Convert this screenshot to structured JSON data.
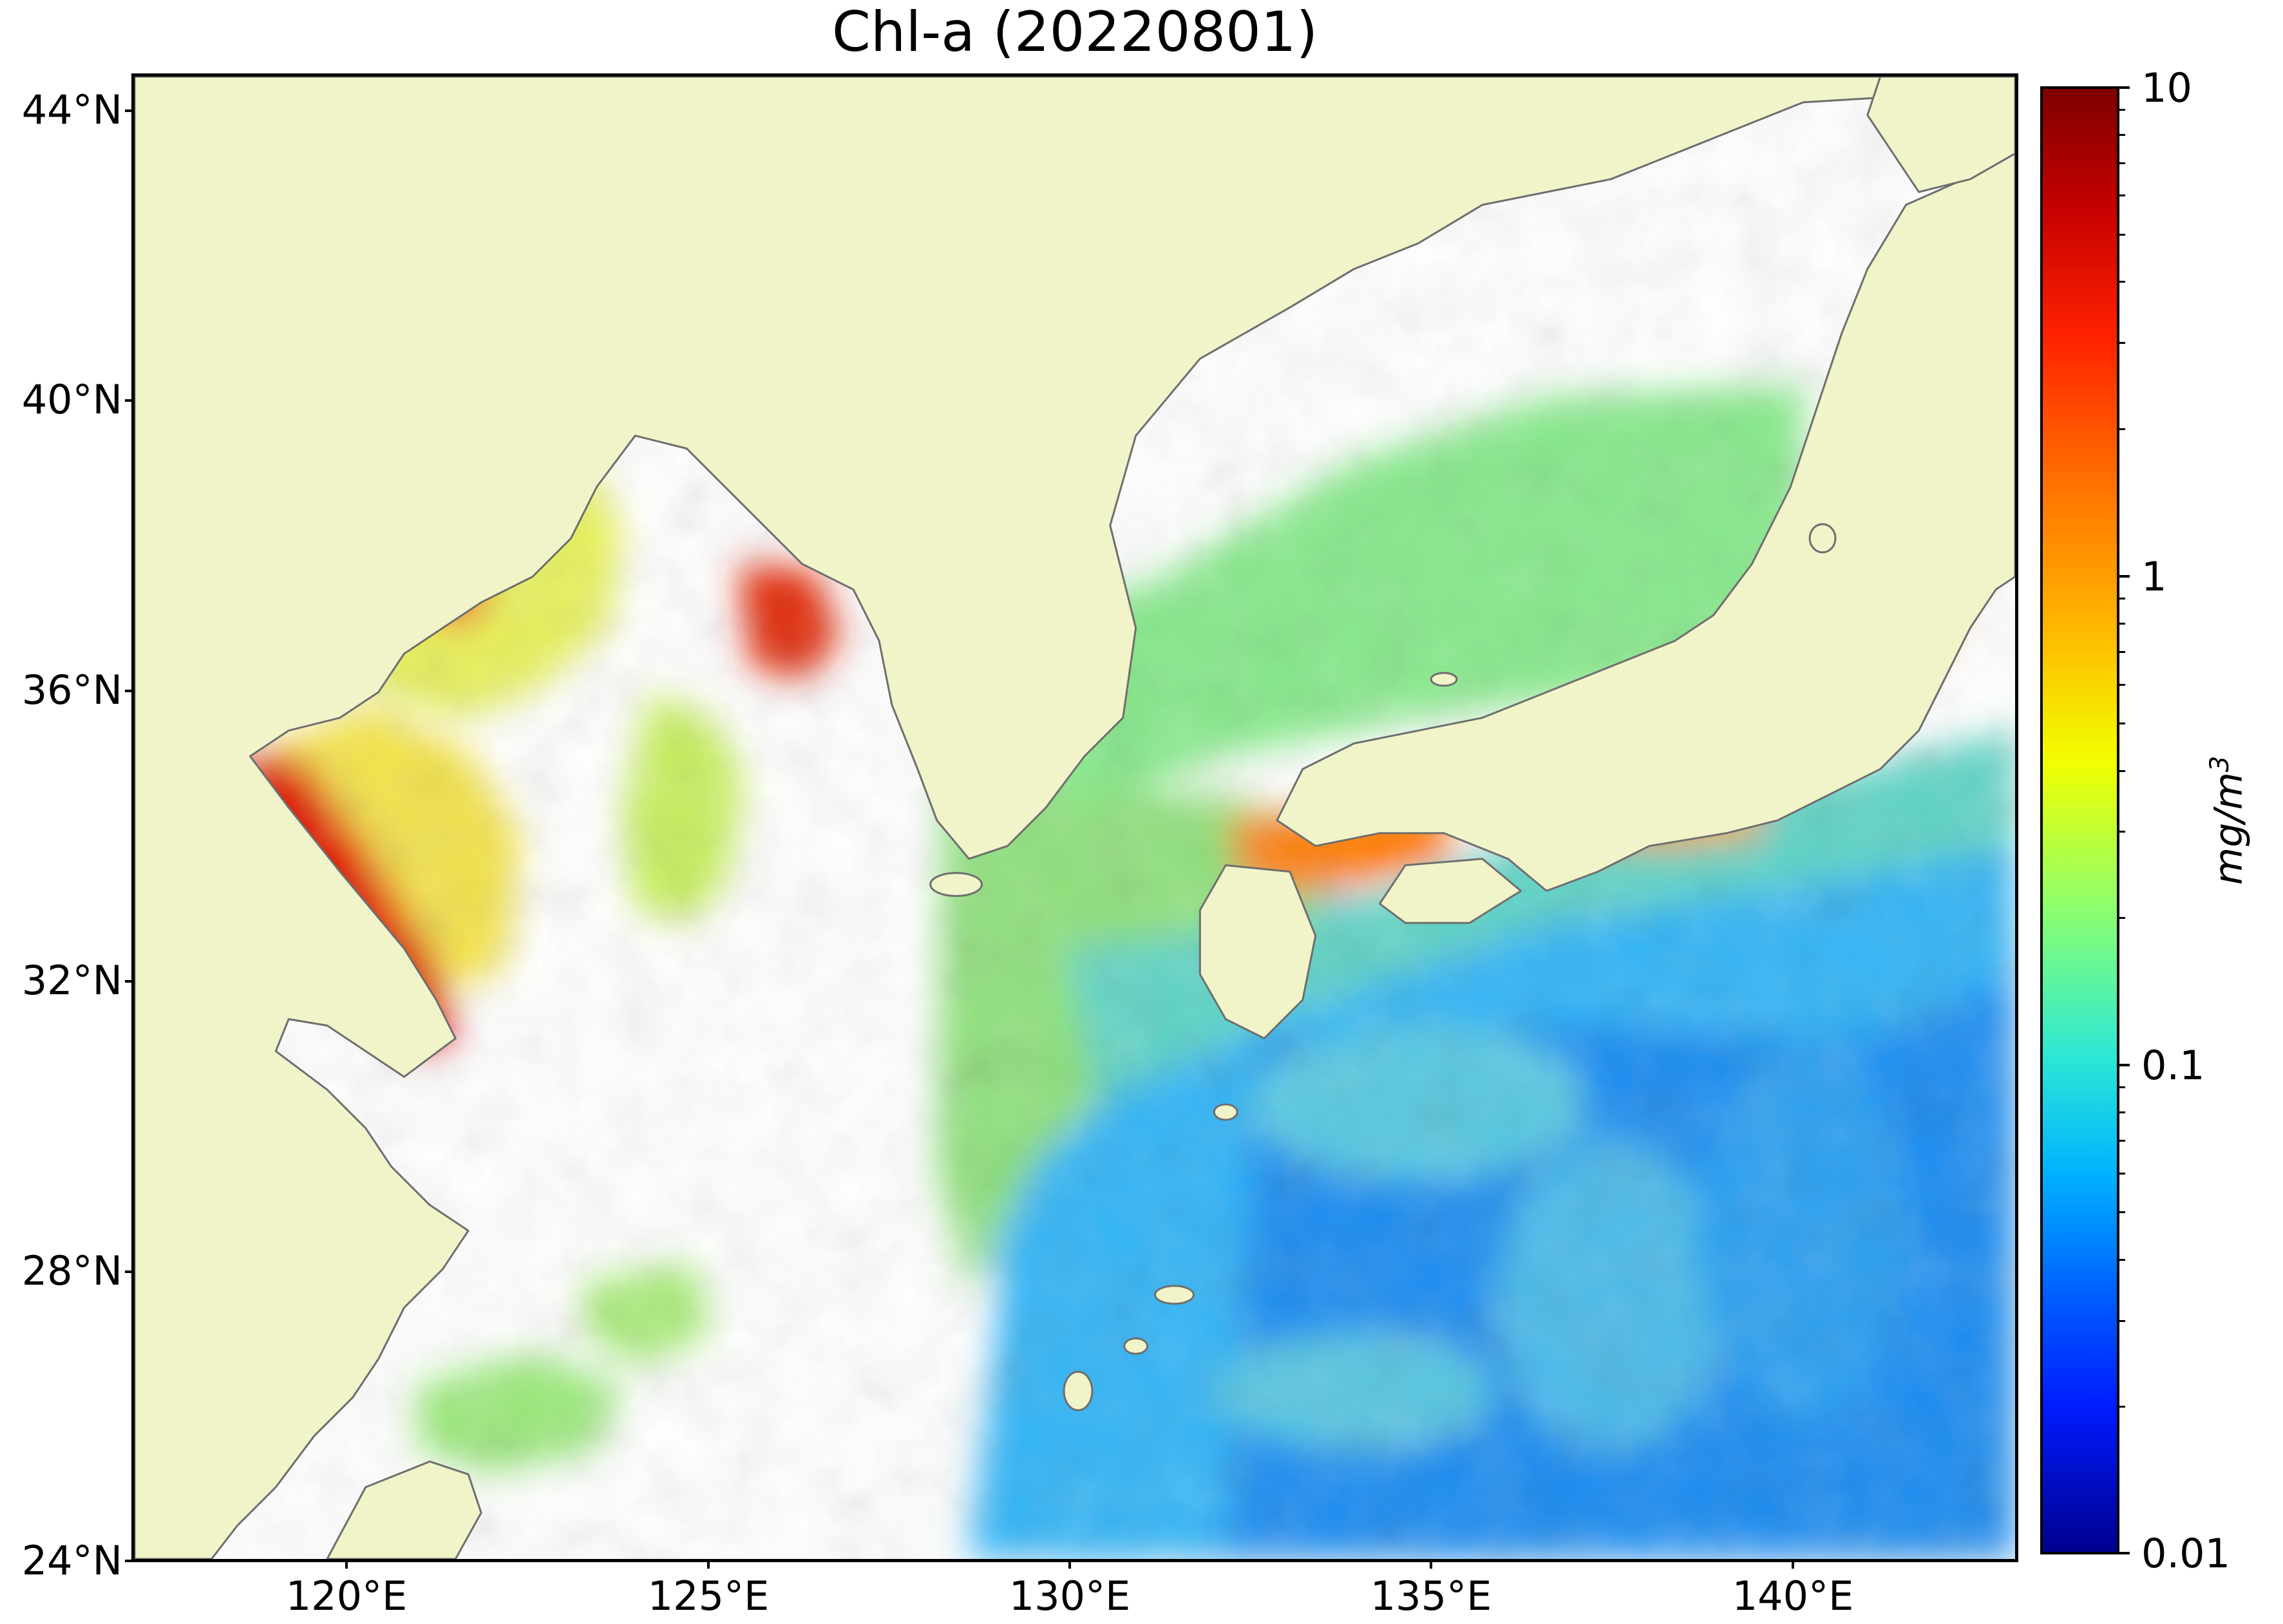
{
  "title": "Chl-a (20220801)",
  "map": {
    "lon_range": [
      116.5,
      143
    ],
    "lat_range": [
      24,
      44.5
    ],
    "land_color": "#f0f4c8",
    "coast_color": "#6e6e6e",
    "no_data_color": "#ffffff"
  },
  "lat_labels": [
    "44°N",
    "40°N",
    "36°N",
    "32°N",
    "28°N",
    "24°N"
  ],
  "lon_labels": [
    "120°E",
    "125°E",
    "130°E",
    "135°E",
    "140°E"
  ],
  "colorbar": {
    "scale": "log",
    "range": [
      0.01,
      10
    ],
    "tick_labels": [
      "10",
      "1",
      "0.1",
      "0.01"
    ],
    "unit_base": "mg/m",
    "unit_exp": "3",
    "colormap": "jet"
  }
}
